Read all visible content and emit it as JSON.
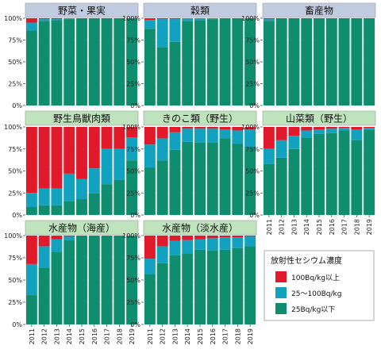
{
  "chart_data": {
    "type": "bar",
    "stacked": true,
    "categories": [
      "2011",
      "2012",
      "2013",
      "2014",
      "2015",
      "2016",
      "2017",
      "2018",
      "2019"
    ],
    "ylim": [
      0,
      100
    ],
    "y_ticks": [
      "0%",
      "25%",
      "50%",
      "75%",
      "100%"
    ],
    "colors": {
      "red": "#e0192b",
      "teal": "#12a2c0",
      "green": "#0e8e6e",
      "header_blue": "#c2cce0",
      "header_green": "#bfe4bd",
      "panel_bg": "#f1f1f1"
    },
    "legend": {
      "title": "放射性セシウム濃度",
      "items": [
        {
          "label": "100Bq/kg以上",
          "color": "#e0192b"
        },
        {
          "label": "25～100Bq/kg",
          "color": "#12a2c0"
        },
        {
          "label": "25Bq/kg以下",
          "color": "#0e8e6e"
        }
      ]
    },
    "panels": [
      {
        "title": "野菜・果実",
        "header": "blue",
        "series": [
          {
            "name": "25Bq/kg以下",
            "values": [
              86,
              97,
              98,
              99,
              100,
              100,
              100,
              100,
              100
            ]
          },
          {
            "name": "25～100Bq/kg",
            "values": [
              9,
              2,
              1,
              1,
              0,
              0,
              0,
              0,
              0
            ]
          },
          {
            "name": "100Bq/kg以上",
            "values": [
              5,
              1,
              1,
              0,
              0,
              0,
              0,
              0,
              0
            ]
          }
        ]
      },
      {
        "title": "穀類",
        "header": "blue",
        "series": [
          {
            "name": "25Bq/kg以下",
            "values": [
              88,
              67,
              73,
              97,
              98,
              99,
              100,
              100,
              100
            ]
          },
          {
            "name": "25～100Bq/kg",
            "values": [
              10,
              32,
              26,
              3,
              2,
              1,
              0,
              0,
              0
            ]
          },
          {
            "name": "100Bq/kg以上",
            "values": [
              2,
              1,
              1,
              0,
              0,
              0,
              0,
              0,
              0
            ]
          }
        ]
      },
      {
        "title": "畜産物",
        "header": "blue",
        "series": [
          {
            "name": "25Bq/kg以下",
            "values": [
              97,
              100,
              100,
              100,
              100,
              100,
              100,
              100,
              100
            ]
          },
          {
            "name": "25～100Bq/kg",
            "values": [
              2,
              0,
              0,
              0,
              0,
              0,
              0,
              0,
              0
            ]
          },
          {
            "name": "100Bq/kg以上",
            "values": [
              1,
              0,
              0,
              0,
              0,
              0,
              0,
              0,
              0
            ]
          }
        ]
      },
      {
        "title": "野生鳥獣肉類",
        "header": "green",
        "series": [
          {
            "name": "25Bq/kg以下",
            "values": [
              9,
              11,
              11,
              16,
              18,
              25,
              35,
              40,
              62
            ]
          },
          {
            "name": "25～100Bq/kg",
            "values": [
              16,
              19,
              19,
              31,
              23,
              28,
              40,
              35,
              26
            ]
          },
          {
            "name": "100Bq/kg以上",
            "values": [
              75,
              70,
              70,
              53,
              59,
              47,
              25,
              25,
              12
            ]
          }
        ]
      },
      {
        "title": "きのこ類（野生）",
        "header": "green",
        "series": [
          {
            "name": "25Bq/kg以下",
            "values": [
              54,
              62,
              74,
              83,
              82,
              82,
              87,
              81,
              77
            ]
          },
          {
            "name": "25～100Bq/kg",
            "values": [
              26,
              25,
              20,
              15,
              16,
              16,
              10,
              15,
              20
            ]
          },
          {
            "name": "100Bq/kg以上",
            "values": [
              20,
              13,
              6,
              2,
              2,
              2,
              3,
              4,
              3
            ]
          }
        ]
      },
      {
        "title": "山菜類（野生）",
        "header": "green",
        "series": [
          {
            "name": "25Bq/kg以下",
            "values": [
              58,
              65,
              75,
              88,
              92,
              93,
              96,
              85,
              97
            ]
          },
          {
            "name": "25～100Bq/kg",
            "values": [
              17,
              20,
              15,
              8,
              5,
              5,
              3,
              12,
              2
            ]
          },
          {
            "name": "100Bq/kg以上",
            "values": [
              25,
              15,
              10,
              4,
              3,
              2,
              1,
              3,
              1
            ]
          }
        ]
      },
      {
        "title": "水産物（海産）",
        "header": "green",
        "series": [
          {
            "name": "25Bq/kg以下",
            "values": [
              33,
              64,
              82,
              95,
              100,
              100,
              100,
              100,
              100
            ]
          },
          {
            "name": "25～100Bq/kg",
            "values": [
              35,
              24,
              14,
              4,
              0,
              0,
              0,
              0,
              0
            ]
          },
          {
            "name": "100Bq/kg以上",
            "values": [
              32,
              12,
              4,
              1,
              0,
              0,
              0,
              0,
              0
            ]
          }
        ]
      },
      {
        "title": "水産物（淡水産）",
        "header": "green",
        "series": [
          {
            "name": "25Bq/kg以下",
            "values": [
              57,
              69,
              78,
              80,
              84,
              83,
              84,
              86,
              88
            ]
          },
          {
            "name": "25～100Bq/kg",
            "values": [
              17,
              19,
              16,
              15,
              12,
              14,
              14,
              12,
              11
            ]
          },
          {
            "name": "100Bq/kg以上",
            "values": [
              26,
              12,
              6,
              5,
              4,
              3,
              2,
              2,
              1
            ]
          }
        ]
      }
    ]
  }
}
